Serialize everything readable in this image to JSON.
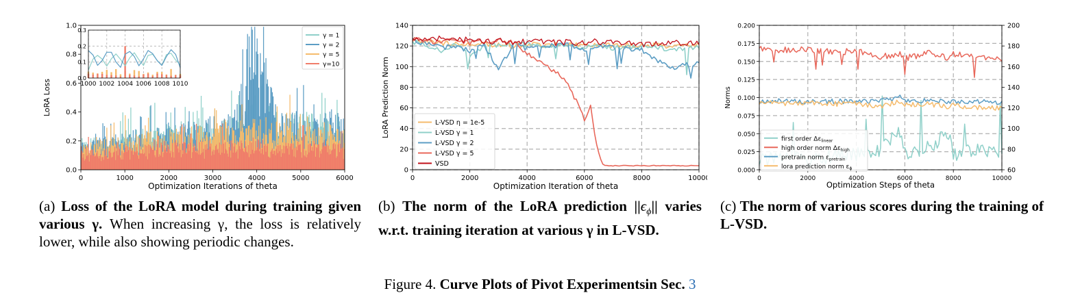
{
  "charts": {
    "a": {
      "type": "bar",
      "ylabel": "LoRA Loss",
      "xlabel": "Optimization Iterations of theta",
      "xlim": [
        0,
        6000
      ],
      "ylim": [
        0,
        1.0
      ],
      "xticks": [
        "0",
        "1000",
        "2000",
        "3000",
        "4000",
        "5000",
        "6000"
      ],
      "yticks": [
        "0.0",
        "0.2",
        "0.4",
        "0.6",
        "0.8",
        "1.0"
      ],
      "legend_position": "top-right",
      "legend": [
        {
          "label": "γ = 1",
          "color": "#8fd0c9"
        },
        {
          "label": "γ = 2",
          "color": "#5c9dc4"
        },
        {
          "label": "γ = 5",
          "color": "#f5bb6c"
        },
        {
          "label": "γ=10",
          "color": "#f07d6a"
        }
      ],
      "inset": {
        "xlim": [
          1000,
          1010
        ],
        "ylim": [
          0,
          0.3
        ],
        "xticks": [
          "1000",
          "1002",
          "1004",
          "1006",
          "1008",
          "1010"
        ],
        "yticks": [
          "0.0",
          "0.1",
          "0.2",
          "0.3"
        ]
      }
    },
    "b": {
      "type": "line",
      "ylabel": "LoRA Prediction Norm",
      "xlabel": "Optimization Iteration of theta",
      "xlim": [
        0,
        10000
      ],
      "ylim": [
        0,
        140
      ],
      "xticks": [
        "0",
        "2000",
        "4000",
        "6000",
        "8000",
        "10000"
      ],
      "yticks": [
        "0",
        "20",
        "40",
        "60",
        "80",
        "100",
        "120",
        "140"
      ],
      "legend_position": "bottom-left",
      "legend": [
        {
          "label": "L-VSD η = 1e-5",
          "color": "#f5bb6c"
        },
        {
          "label": "L-VSD γ = 1",
          "color": "#8fd0c9"
        },
        {
          "label": "L-VSD γ = 2",
          "color": "#5c9dc4"
        },
        {
          "label": "L-VSD γ = 5",
          "color": "#e8675a"
        },
        {
          "label": "VSD",
          "color": "#c0101a"
        }
      ]
    },
    "c": {
      "type": "line",
      "ylabel": "Norms",
      "xlabel": "Optimization Steps of theta",
      "xlim": [
        0,
        10000
      ],
      "ylim": [
        0,
        0.2
      ],
      "ylim_right": [
        60,
        200
      ],
      "xticks": [
        "0",
        "2000",
        "4000",
        "6000",
        "8000",
        "10000"
      ],
      "yticks": [
        "0.000",
        "0.025",
        "0.050",
        "0.075",
        "0.100",
        "0.125",
        "0.150",
        "0.175",
        "0.200"
      ],
      "yticks_right": [
        "60",
        "80",
        "100",
        "120",
        "140",
        "160",
        "180",
        "200"
      ],
      "legend_position": "bottom-left",
      "legend": [
        {
          "label": "first order Δε",
          "sub": "linear",
          "color": "#8fd0c9"
        },
        {
          "label": "high order norm Δε",
          "sub": "high",
          "color": "#e8675a"
        },
        {
          "label": "pretrain norm ε",
          "sub": "pretrain",
          "color": "#5c9dc4"
        },
        {
          "label": "lora prediction norm ε",
          "sub": "ϕ",
          "color": "#f5bb6c"
        }
      ]
    }
  },
  "chart_data": [
    {
      "type": "bar",
      "title": "",
      "xlabel": "Optimization Iterations of theta",
      "ylabel": "LoRA Loss",
      "xlim": [
        0,
        6000
      ],
      "ylim": [
        0,
        1.0
      ],
      "series_names": [
        "γ = 1",
        "γ = 2",
        "γ = 5",
        "γ=10"
      ],
      "x": [
        0,
        500,
        1000,
        1500,
        2000,
        2500,
        3000,
        3500,
        3900,
        4500,
        5000,
        5500,
        6000
      ],
      "series": [
        {
          "name": "γ = 1",
          "values": [
            0.18,
            0.2,
            0.23,
            0.25,
            0.27,
            0.3,
            0.3,
            0.32,
            0.45,
            0.33,
            0.34,
            0.33,
            0.32
          ]
        },
        {
          "name": "γ = 2",
          "values": [
            0.17,
            0.2,
            0.22,
            0.25,
            0.28,
            0.3,
            0.31,
            0.32,
            0.97,
            0.34,
            0.34,
            0.33,
            0.32
          ]
        },
        {
          "name": "γ = 5",
          "values": [
            0.16,
            0.18,
            0.2,
            0.22,
            0.24,
            0.26,
            0.27,
            0.28,
            0.3,
            0.28,
            0.28,
            0.27,
            0.26
          ]
        },
        {
          "name": "γ=10",
          "values": [
            0.12,
            0.13,
            0.14,
            0.15,
            0.16,
            0.17,
            0.17,
            0.17,
            0.18,
            0.17,
            0.17,
            0.17,
            0.16
          ]
        }
      ]
    },
    {
      "type": "line",
      "title": "",
      "xlabel": "Optimization Iteration of theta",
      "ylabel": "LoRA Prediction Norm",
      "xlim": [
        0,
        10000
      ],
      "ylim": [
        0,
        140
      ],
      "x": [
        0,
        500,
        1000,
        1500,
        2000,
        2500,
        3000,
        3500,
        4000,
        4500,
        5000,
        5500,
        6000,
        6200,
        6400,
        6600,
        7000,
        8000,
        9000,
        10000
      ],
      "series": [
        {
          "name": "L-VSD η = 1e-5",
          "values": [
            125,
            124,
            123,
            122,
            121,
            122,
            121,
            120,
            122,
            121,
            121,
            122,
            120,
            121,
            122,
            121,
            120,
            121,
            120,
            121
          ]
        },
        {
          "name": "L-VSD γ = 1",
          "values": [
            124,
            120,
            116,
            122,
            110,
            121,
            120,
            123,
            121,
            120,
            119,
            121,
            118,
            120,
            121,
            120,
            118,
            119,
            117,
            118
          ]
        },
        {
          "name": "L-VSD γ = 2",
          "values": [
            125,
            122,
            118,
            120,
            115,
            122,
            96,
            121,
            118,
            119,
            120,
            121,
            115,
            118,
            120,
            119,
            118,
            116,
            98,
            104
          ]
        },
        {
          "name": "L-VSD γ = 5",
          "values": [
            126,
            125,
            124,
            125,
            123,
            124,
            125,
            124,
            112,
            104,
            95,
            80,
            48,
            63,
            30,
            4,
            4,
            4,
            4,
            4
          ]
        },
        {
          "name": "VSD",
          "values": [
            127,
            126,
            128,
            125,
            126,
            124,
            125,
            123,
            124,
            125,
            123,
            124,
            122,
            124,
            125,
            123,
            124,
            121,
            123,
            124
          ]
        }
      ]
    },
    {
      "type": "line",
      "title": "",
      "xlabel": "Optimization Steps of theta",
      "ylabel": "Norms",
      "xlim": [
        0,
        10000
      ],
      "ylim": [
        0,
        0.2
      ],
      "ylim_right": [
        60,
        200
      ],
      "x": [
        0,
        1000,
        2000,
        3000,
        4000,
        5000,
        5800,
        6000,
        7000,
        7800,
        8000,
        9000,
        10000
      ],
      "series": [
        {
          "name": "first order Δε linear",
          "axis": "left",
          "values": [
            0.01,
            0.005,
            0.008,
            0.012,
            0.02,
            0.03,
            0.07,
            0.02,
            0.035,
            0.07,
            0.015,
            0.03,
            0.02
          ]
        },
        {
          "name": "high order norm Δε high",
          "axis": "right",
          "values": [
            178,
            176,
            177,
            174,
            175,
            170,
            172,
            168,
            173,
            168,
            172,
            170,
            166
          ]
        },
        {
          "name": "pretrain norm ε pretrain",
          "axis": "left",
          "values": [
            0.095,
            0.096,
            0.094,
            0.095,
            0.094,
            0.095,
            0.1,
            0.096,
            0.095,
            0.094,
            0.095,
            0.094,
            0.093
          ]
        },
        {
          "name": "lora prediction norm ε ϕ",
          "axis": "left",
          "values": [
            0.094,
            0.092,
            0.093,
            0.091,
            0.092,
            0.088,
            0.094,
            0.09,
            0.091,
            0.087,
            0.089,
            0.086,
            0.085
          ]
        }
      ]
    }
  ],
  "captions": {
    "a": {
      "prefix": "(a) ",
      "bold": "Loss of the LoRA model during training given various γ.",
      "rest": " When increasing γ, the loss is relatively lower, while also showing periodic changes."
    },
    "b": {
      "prefix": "(b) ",
      "bold_1": "The norm of the LoRA prediction ||",
      "math": "ϵ",
      "math_sub": "ϕ",
      "bold_2": "|| varies w.r.t. training iteration at various γ in L-VSD."
    },
    "c": {
      "prefix": "(c) ",
      "bold": "The norm of various scores during the training of L-VSD."
    },
    "figure": {
      "prefix": "Figure 4. ",
      "bold": "Curve Plots of Pivot Experimentsin Sec. ",
      "ref": "3"
    }
  }
}
